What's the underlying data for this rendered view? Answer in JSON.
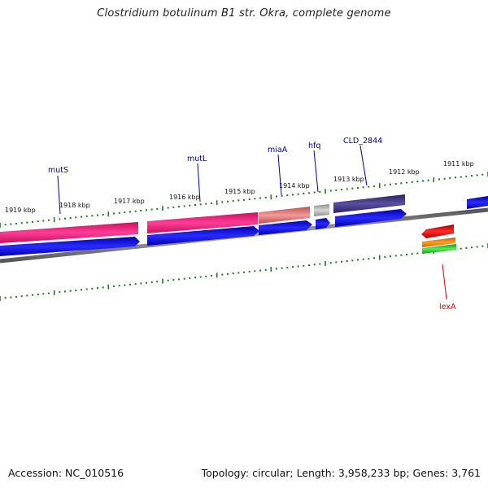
{
  "title": "Clostridium botulinum B1 str. Okra, complete genome",
  "footer": {
    "accession": "Accession: NC_010516",
    "summary": "Topology: circular; Length: 3,958,233 bp; Genes: 3,761"
  },
  "colors": {
    "backbone": "#7a7a7a",
    "tick": "#1f7a1f",
    "cds": "#0000ee",
    "gene_label": "#00009a",
    "lexA_label": "#dd0000"
  },
  "ticks": [
    {
      "label": "1919 kbp"
    },
    {
      "label": "1918 kbp"
    },
    {
      "label": "1917 kbp"
    },
    {
      "label": "1916 kbp"
    },
    {
      "label": "1915 kbp"
    },
    {
      "label": "1914 kbp"
    },
    {
      "label": "1913 kbp"
    },
    {
      "label": "1912 kbp"
    },
    {
      "label": "1911 kbp"
    }
  ],
  "genes": [
    {
      "name": "mutS"
    },
    {
      "name": "mutL"
    },
    {
      "name": "miaA"
    },
    {
      "name": "hfq"
    },
    {
      "name": "CLD_2844"
    },
    {
      "name": "lexA"
    }
  ],
  "features": [
    {
      "name": "mutS-category-bar",
      "color": "#e8207a"
    },
    {
      "name": "mutL-category-bar",
      "color": "#e8207a"
    },
    {
      "name": "miaA-category-bar",
      "color": "#d87070"
    },
    {
      "name": "hfq-category-bar",
      "color": "#b8b8b8"
    },
    {
      "name": "CLD_2844-category-bar",
      "color": "#3a2f7a"
    },
    {
      "name": "lexA-category-arrow",
      "color": "#ee1111"
    },
    {
      "name": "lexA-category-bar-orange",
      "color": "#f08c00"
    },
    {
      "name": "lexA-category-bar-green",
      "color": "#33cc33"
    }
  ]
}
